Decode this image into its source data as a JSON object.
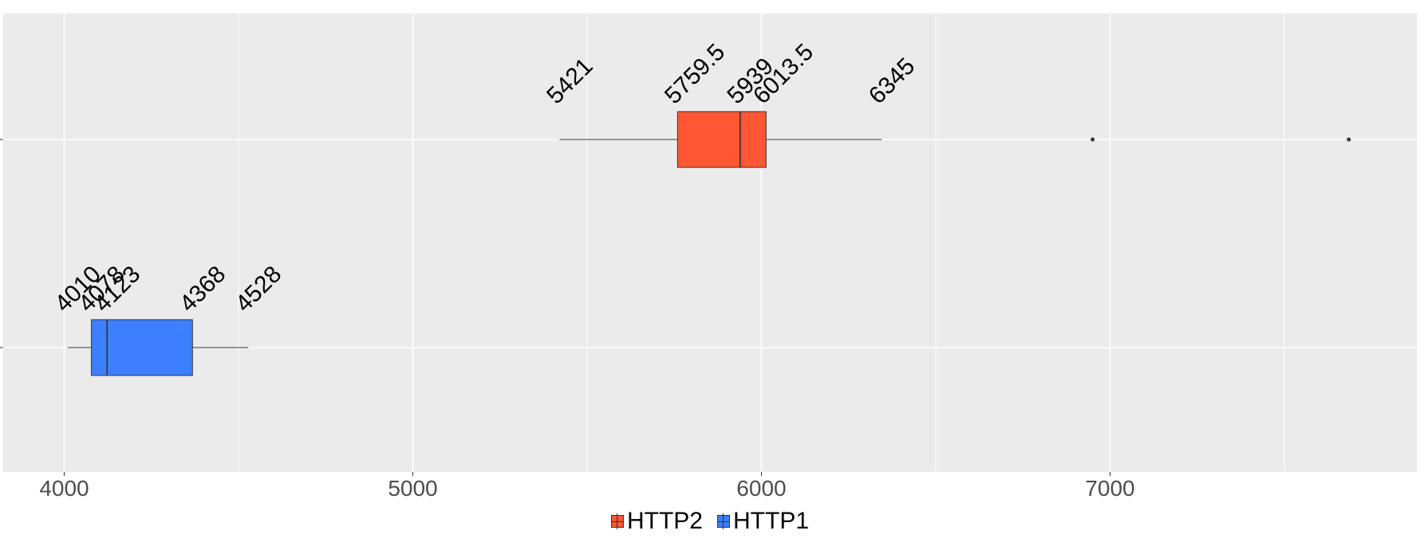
{
  "chart_data": {
    "type": "boxplot",
    "title": "",
    "xlabel": "",
    "ylabel": "",
    "xlim": [
      3825,
      7880
    ],
    "x_ticks": [
      4000,
      5000,
      6000,
      7000
    ],
    "x_tick_labels": [
      "4000",
      "5000",
      "6000",
      "7000"
    ],
    "grid": true,
    "legend_position": "bottom",
    "series": [
      {
        "name": "HTTP2",
        "color": "#FF5733",
        "min": 5421,
        "q1": 5759.5,
        "median": 5939,
        "q3": 6013.5,
        "max": 6345,
        "outliers": [
          6950,
          7685
        ],
        "labels": [
          "5421",
          "5759.5",
          "5939",
          "6013.5",
          "6345"
        ]
      },
      {
        "name": "HTTP1",
        "color": "#3D7FFF",
        "min": 4010,
        "q1": 4078,
        "median": 4123,
        "q3": 4368,
        "max": 4528,
        "outliers": [],
        "labels": [
          "4010",
          "4078",
          "4123",
          "4368",
          "4528"
        ]
      }
    ]
  }
}
